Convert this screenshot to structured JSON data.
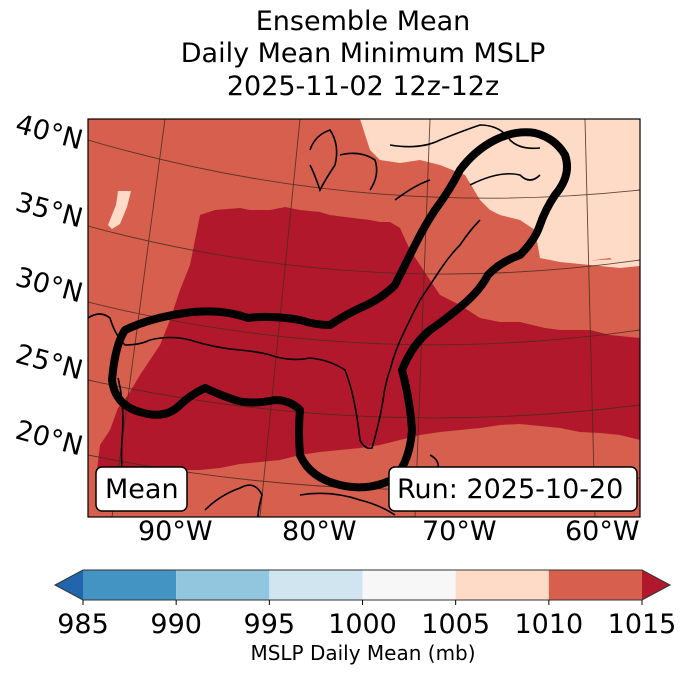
{
  "chart_data": {
    "type": "heatmap",
    "title_lines": [
      "Ensemble Mean",
      "Daily Mean Minimum MSLP",
      "2025-11-02 12z-12z"
    ],
    "map": {
      "projection": "conic",
      "lat_ticks": [
        "40°N",
        "35°N",
        "30°N",
        "25°N",
        "20°N"
      ],
      "lon_ticks": [
        "90°W",
        "80°W",
        "70°W",
        "60°W"
      ],
      "lat_values": [
        40,
        35,
        30,
        25,
        20
      ],
      "lon_values": [
        -90,
        -80,
        -70,
        -60
      ],
      "gridlines": true,
      "coastlines": true,
      "contour": "thick black outline enclosing Gulf of Mexico and US East Coast storm track region"
    },
    "field_regions": [
      {
        "name": "background",
        "bin": "1010-1015"
      },
      {
        "name": "gulf-and-atlantic-low",
        "bin": ">1015"
      },
      {
        "name": "northeast-canada",
        "bin": "1005-1010"
      },
      {
        "name": "western-patch",
        "bin": "1005-1010"
      }
    ],
    "annotations": {
      "left_box": "Mean",
      "right_box": "Run: 2025-10-20"
    },
    "colorbar": {
      "label": "MSLP Daily Mean (mb)",
      "ticks": [
        "985",
        "990",
        "995",
        "1000",
        "1005",
        "1010",
        "1015"
      ],
      "bounds": [
        985,
        990,
        995,
        1000,
        1005,
        1010,
        1015
      ],
      "extend": "both",
      "colors": [
        "#4393c3",
        "#92c5de",
        "#d1e5f0",
        "#f7f7f7",
        "#fddbc7",
        "#d6604d"
      ],
      "under_color": "#2166ac",
      "over_color": "#b2182b"
    }
  }
}
